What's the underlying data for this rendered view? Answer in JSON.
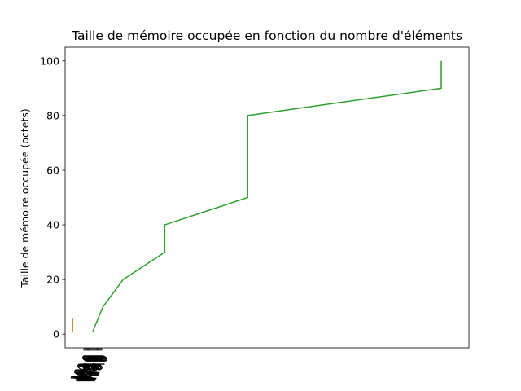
{
  "chart_data": {
    "type": "line",
    "title": "Taille de mémoire occupée en fonction du nombre d'éléments",
    "xlabel": "",
    "ylabel": "Taille de mémoire occupée (octets)",
    "xlim": [
      -8,
      430
    ],
    "ylim": [
      -5,
      105
    ],
    "y_ticks": [
      0,
      20,
      40,
      60,
      80,
      100
    ],
    "x_ticks_rotation_deg": -60,
    "x_ticks": [
      {
        "value": 0,
        "label": "100.0"
      },
      {
        "value": 1,
        "label": "101.0"
      },
      {
        "value": 2,
        "label": "102.0"
      },
      {
        "value": 3,
        "label": "103.0"
      },
      {
        "value": 4,
        "label": "104.0"
      },
      {
        "value": 5,
        "label": "105.0"
      },
      {
        "value": 6,
        "label": "106.0"
      },
      {
        "value": 7,
        "label": "107.0"
      },
      {
        "value": 8,
        "label": "108.0"
      },
      {
        "value": 9,
        "label": "109.0"
      },
      {
        "value": 10,
        "label": "110.0"
      },
      {
        "value": 11,
        "label": "111.0"
      },
      {
        "value": 12,
        "label": "112.0"
      },
      {
        "value": 13,
        "label": "113.0"
      },
      {
        "value": 14,
        "label": "114.0"
      },
      {
        "value": 15,
        "label": "115.0"
      },
      {
        "value": 16,
        "label": "116.0"
      },
      {
        "value": 17,
        "label": "117.0"
      },
      {
        "value": 18,
        "label": "118.0"
      },
      {
        "value": 19,
        "label": "119.0"
      },
      {
        "value": 20,
        "label": "120.0"
      }
    ],
    "grid": false,
    "series": [
      {
        "color": "#1f77b4",
        "x": [
          0,
          0,
          0,
          0,
          0,
          0
        ],
        "y": [
          1,
          2,
          3,
          4,
          5,
          6
        ]
      },
      {
        "color": "#ff7f0e",
        "x": [
          0,
          0,
          0,
          0,
          0,
          0
        ],
        "y": [
          1,
          2,
          3,
          4,
          5,
          6
        ]
      },
      {
        "color": "#2ca02c",
        "x": [
          22,
          33,
          55,
          100,
          100,
          190,
          190,
          400,
          400
        ],
        "y": [
          1,
          10,
          20,
          30,
          40,
          50,
          80,
          90,
          100
        ]
      }
    ]
  }
}
